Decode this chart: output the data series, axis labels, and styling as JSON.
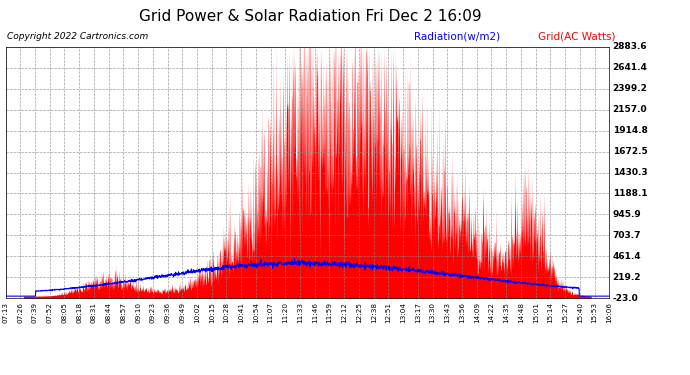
{
  "title": "Grid Power & Solar Radiation Fri Dec 2 16:09",
  "copyright": "Copyright 2022 Cartronics.com",
  "legend_radiation": "Radiation(w/m2)",
  "legend_grid": "Grid(AC Watts)",
  "ylabel_right_ticks": [
    -23.0,
    219.2,
    461.4,
    703.7,
    945.9,
    1188.1,
    1430.3,
    1672.5,
    1914.8,
    2157.0,
    2399.2,
    2641.4,
    2883.6
  ],
  "ymin": -23.0,
  "ymax": 2883.6,
  "background_color": "#ffffff",
  "plot_bg_color": "#ffffff",
  "grid_color": "#aaaaaa",
  "radiation_color": "#0000ff",
  "grid_ac_color": "#ff0000",
  "title_color": "#000000",
  "xtick_labels": [
    "07:13",
    "07:26",
    "07:39",
    "07:52",
    "08:05",
    "08:18",
    "08:31",
    "08:44",
    "08:57",
    "09:10",
    "09:23",
    "09:36",
    "09:49",
    "10:02",
    "10:15",
    "10:28",
    "10:41",
    "10:54",
    "11:07",
    "11:20",
    "11:33",
    "11:46",
    "11:59",
    "12:12",
    "12:25",
    "12:38",
    "12:51",
    "13:04",
    "13:17",
    "13:30",
    "13:43",
    "13:56",
    "14:09",
    "14:22",
    "14:35",
    "14:48",
    "15:01",
    "15:14",
    "15:27",
    "15:40",
    "15:53",
    "16:06"
  ],
  "num_points": 2000
}
